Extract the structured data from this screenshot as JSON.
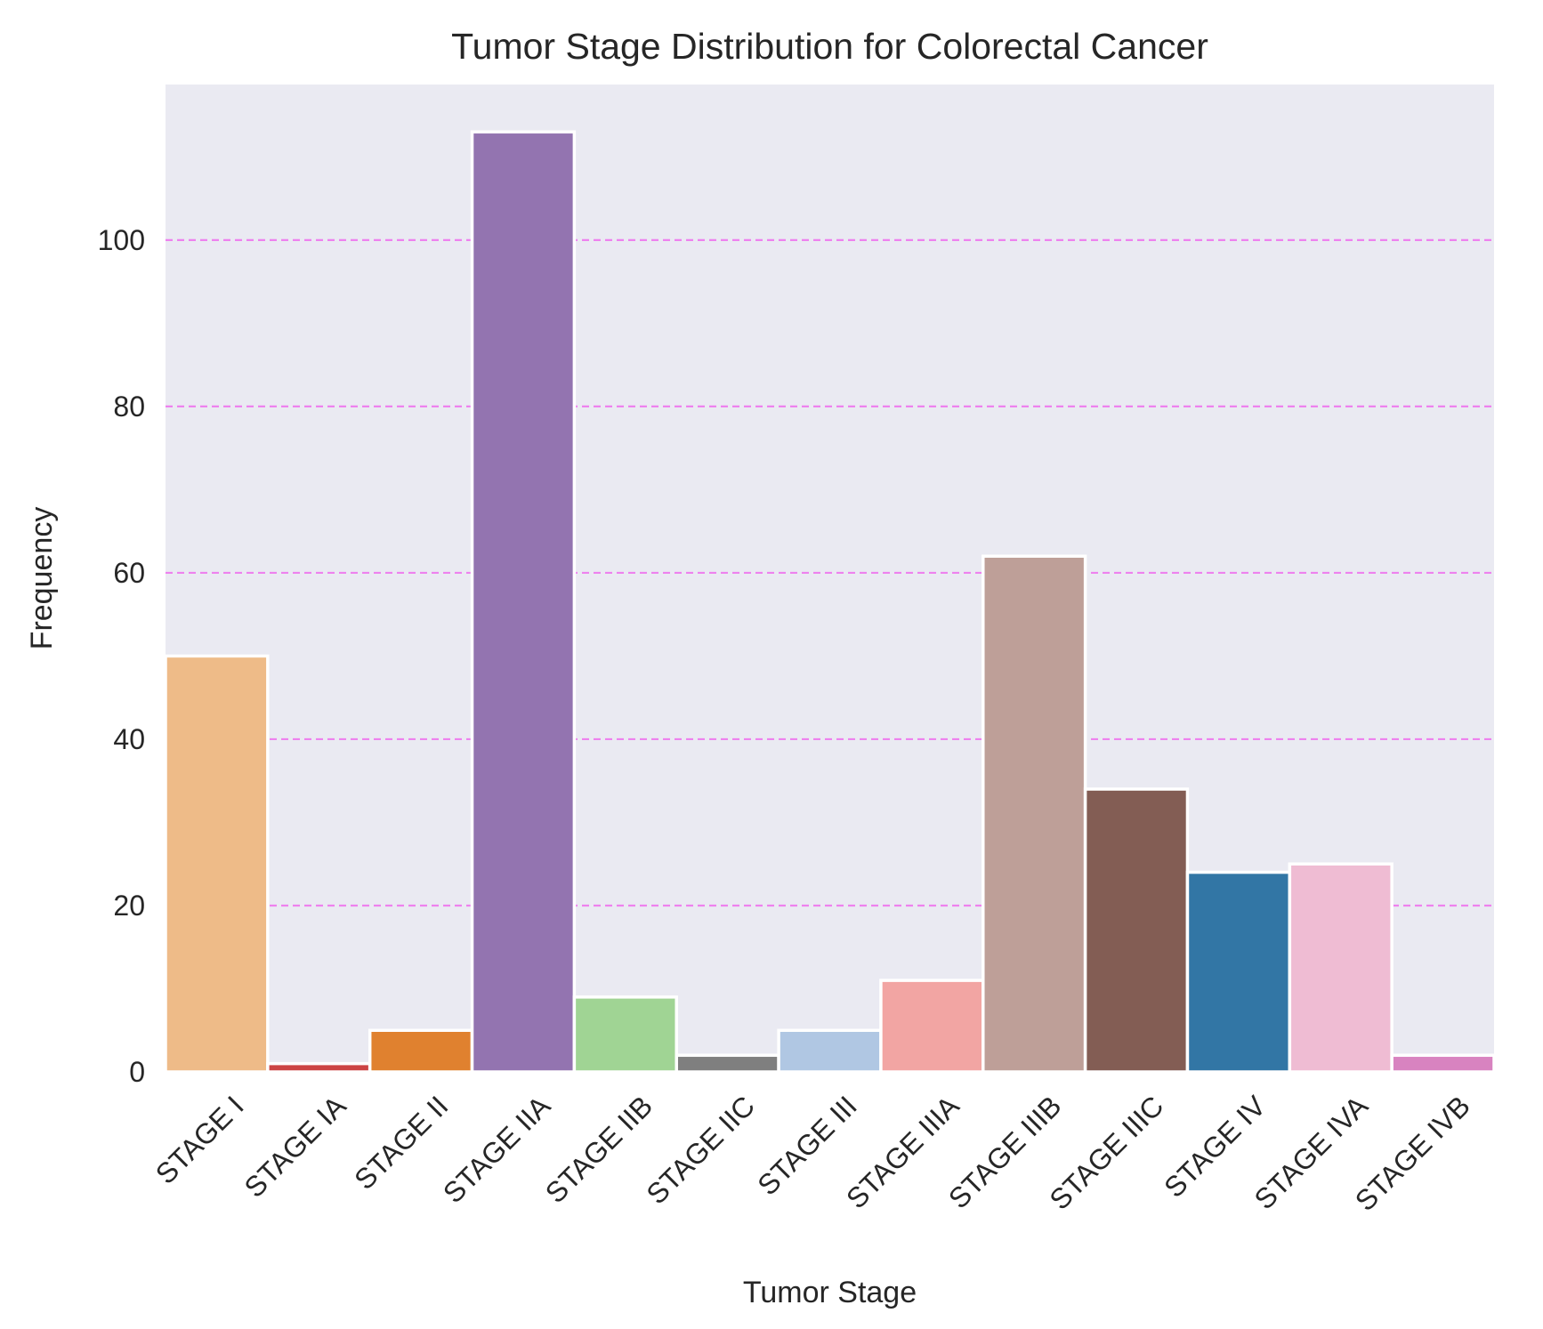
{
  "chart_data": {
    "type": "bar",
    "title": "Tumor Stage Distribution for Colorectal Cancer",
    "xlabel": "Tumor Stage",
    "ylabel": "Frequency",
    "categories": [
      "STAGE I",
      "STAGE IA",
      "STAGE II",
      "STAGE IIA",
      "STAGE IIB",
      "STAGE IIC",
      "STAGE III",
      "STAGE IIIA",
      "STAGE IIIB",
      "STAGE IIIC",
      "STAGE IV",
      "STAGE IVA",
      "STAGE IVB"
    ],
    "values": [
      50,
      1,
      5,
      113,
      9,
      2,
      5,
      11,
      62,
      34,
      24,
      25,
      2
    ],
    "colors": [
      "#EEBB88",
      "#CC4444",
      "#E0812F",
      "#9374B0",
      "#A0D494",
      "#7F7F7F",
      "#B0C7E3",
      "#F2A5A3",
      "#BE9F98",
      "#835D54",
      "#3276A5",
      "#EFBCD3",
      "#D883C0"
    ],
    "ylim": [
      0,
      118.7
    ],
    "yticks": [
      0,
      20,
      40,
      60,
      80,
      100
    ],
    "grid": "horizontal dashed",
    "grid_color": "#EE82EE",
    "background": "#EAEAF2",
    "legend": "none"
  }
}
